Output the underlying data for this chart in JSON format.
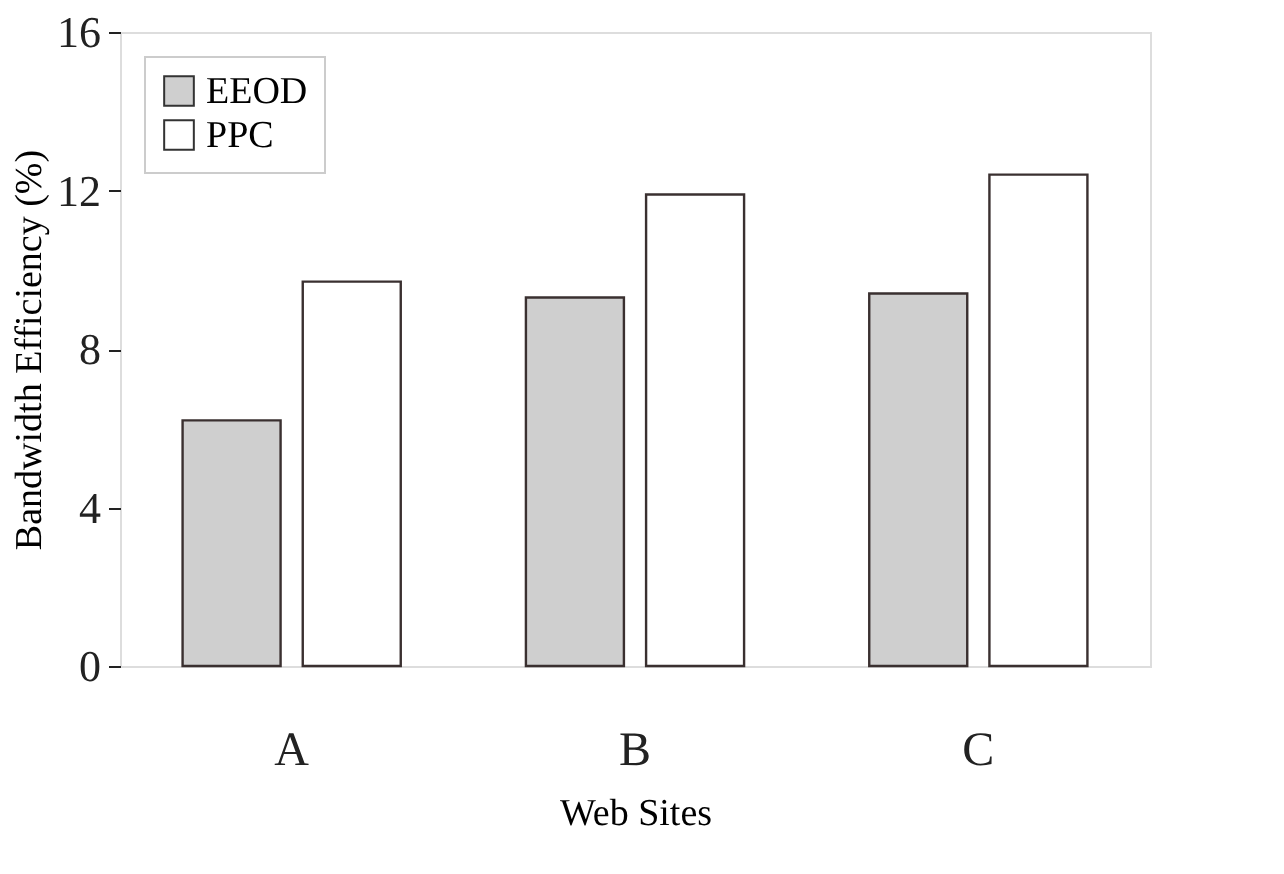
{
  "chart_data": {
    "type": "bar",
    "xlabel": "Web Sites",
    "ylabel": "Bandwidth Efficiency (%)",
    "categories": [
      "A",
      "B",
      "C"
    ],
    "series": [
      {
        "name": "EEOD",
        "color": "#cfcfcf",
        "values": [
          6.2,
          9.3,
          9.4
        ]
      },
      {
        "name": "PPC",
        "color": "#ffffff",
        "values": [
          9.7,
          11.9,
          12.4
        ]
      }
    ],
    "ylim": [
      0,
      16
    ],
    "yticks": [
      0,
      4,
      8,
      12,
      16
    ],
    "grid": false,
    "legend": "top left"
  }
}
